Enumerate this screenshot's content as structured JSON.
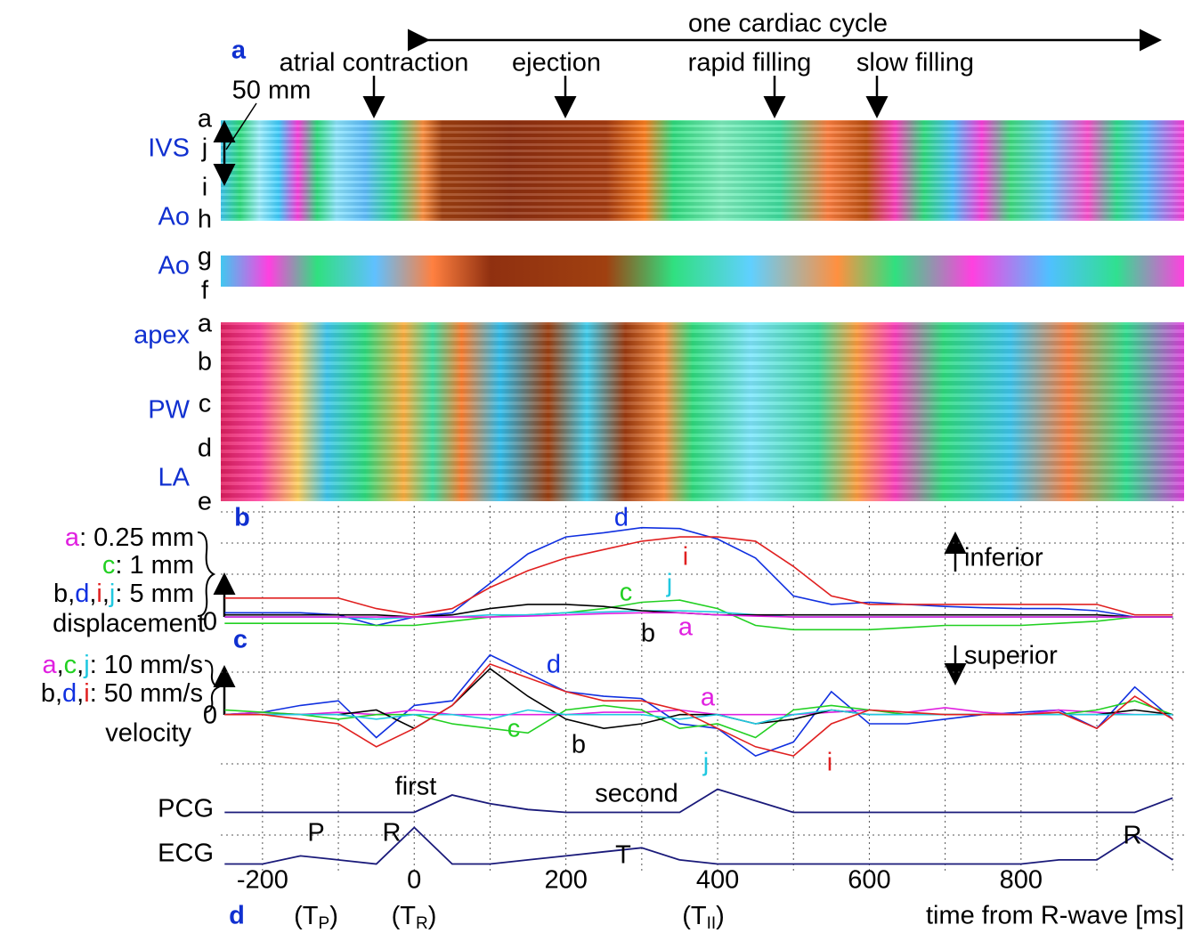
{
  "chart_data": {
    "type": "line",
    "title": "one cardiac cycle",
    "panel_letters": [
      "a",
      "b",
      "c",
      "d"
    ],
    "phases": [
      "atrial contraction",
      "ejection",
      "rapid filling",
      "slow filling"
    ],
    "scale_label": "50 mm",
    "region_labels": [
      "IVS",
      "Ao",
      "Ao",
      "apex",
      "PW",
      "LA"
    ],
    "position_labels": [
      "a",
      "j",
      "i",
      "h",
      "g",
      "f",
      "a",
      "b",
      "c",
      "d",
      "e"
    ],
    "x_label": "time from R-wave [ms]",
    "xlim": [
      -255,
      1015
    ],
    "xticks": [
      -200,
      0,
      200,
      400,
      600,
      800
    ],
    "xgrid": [
      -200,
      -100,
      0,
      100,
      200,
      300,
      400,
      500,
      600,
      700,
      800,
      900,
      1000
    ],
    "event_labels": [
      [
        "(T",
        "P",
        ")"
      ],
      [
        "(T",
        "R",
        ")"
      ],
      [
        "(T",
        "II",
        ")"
      ]
    ],
    "x": [
      -250,
      -200,
      -150,
      -100,
      -50,
      0,
      50,
      100,
      150,
      200,
      250,
      300,
      350,
      400,
      450,
      500,
      550,
      600,
      650,
      700,
      750,
      800,
      850,
      900,
      950,
      1000
    ],
    "displacement": {
      "label": "displacement",
      "zero": "0",
      "direction": "inferior",
      "ylim": [
        -0.4,
        2.6
      ],
      "scale_labels": [
        [
          "a",
          ": 0.25 mm"
        ],
        [
          "c",
          ": 1 mm"
        ],
        [
          "b",
          ",",
          "d",
          ",",
          "i",
          ",",
          "j",
          ": 5 mm"
        ]
      ],
      "series": [
        {
          "name": "d",
          "color": "#1030e0",
          "values": [
            0.1,
            0.1,
            0.1,
            0.05,
            -0.2,
            0,
            0.1,
            0.8,
            1.5,
            1.9,
            2.0,
            2.12,
            2.1,
            1.85,
            1.4,
            0.5,
            0.3,
            0.35,
            0.3,
            0.25,
            0.22,
            0.2,
            0.2,
            0.15,
            0,
            0
          ]
        },
        {
          "name": "i",
          "color": "#e02020",
          "values": [
            0.45,
            0.45,
            0.45,
            0.45,
            0.2,
            0.05,
            0.2,
            0.7,
            1.1,
            1.4,
            1.6,
            1.8,
            1.9,
            1.9,
            1.8,
            1.2,
            0.5,
            0.3,
            0.3,
            0.3,
            0.3,
            0.3,
            0.3,
            0.3,
            0.05,
            0.05
          ]
        },
        {
          "name": "c",
          "color": "#22d022",
          "values": [
            -0.15,
            -0.15,
            -0.15,
            -0.15,
            -0.2,
            -0.2,
            -0.1,
            0,
            0.05,
            0.1,
            0.2,
            0.35,
            0.4,
            0.2,
            -0.2,
            -0.3,
            -0.3,
            -0.3,
            -0.25,
            -0.2,
            -0.2,
            -0.2,
            -0.15,
            -0.1,
            0,
            0
          ]
        },
        {
          "name": "j",
          "color": "#20c8e0",
          "values": [
            0,
            0,
            0,
            0,
            -0.05,
            0,
            0,
            0.05,
            0.05,
            0.1,
            0.12,
            0.15,
            0.15,
            0.12,
            0.05,
            0,
            0,
            0,
            0,
            0,
            0,
            0,
            0,
            0,
            0,
            0
          ]
        },
        {
          "name": "b",
          "color": "#000000",
          "values": [
            0.05,
            0.05,
            0.05,
            0.05,
            0.05,
            0,
            0.05,
            0.2,
            0.3,
            0.3,
            0.25,
            0.15,
            0.1,
            0.05,
            0.05,
            0.05,
            0.05,
            0.05,
            0.05,
            0.05,
            0.05,
            0.05,
            0.05,
            0.05,
            0,
            0
          ]
        },
        {
          "name": "a",
          "color": "#e020e0",
          "values": [
            0,
            0,
            0,
            0,
            0,
            0,
            0,
            0,
            0.02,
            0.05,
            0.08,
            0.1,
            0.1,
            0.05,
            0.02,
            0,
            0,
            0,
            0,
            0,
            0,
            0,
            0,
            0,
            0,
            0
          ]
        }
      ]
    },
    "velocity": {
      "label": "velocity",
      "zero": "0",
      "direction": "superior",
      "ylim": [
        -1.15,
        1.7
      ],
      "scale_labels": [
        [
          "a",
          ",",
          "c",
          ",",
          "j",
          ": 10 mm/s"
        ],
        [
          "b",
          ",",
          "d",
          ",",
          "i",
          ": 50 mm/s"
        ]
      ],
      "series": [
        {
          "name": "d",
          "color": "#1030e0",
          "values": [
            0,
            0.05,
            0.2,
            0.3,
            -0.5,
            0.2,
            0.3,
            1.3,
            0.9,
            0.5,
            0.4,
            0.35,
            -0.2,
            -0.3,
            -0.9,
            -0.6,
            0.5,
            -0.2,
            -0.2,
            -0.1,
            0,
            0.05,
            0.1,
            -0.3,
            0.6,
            -0.1
          ]
        },
        {
          "name": "a",
          "color": "#e020e0",
          "values": [
            0,
            0.05,
            0,
            0.05,
            0,
            0.1,
            0,
            0,
            0,
            0,
            0.05,
            0.05,
            0.1,
            0,
            0,
            0,
            0.05,
            0.1,
            0.05,
            0.15,
            0.05,
            0,
            0.1,
            0.05,
            0,
            0
          ]
        },
        {
          "name": "c",
          "color": "#22d022",
          "values": [
            0.1,
            0.05,
            0,
            -0.1,
            0,
            0,
            -0.2,
            -0.3,
            -0.4,
            0.1,
            0.2,
            0.1,
            -0.3,
            -0.2,
            -0.5,
            0.1,
            0.2,
            0.1,
            0,
            0,
            0,
            0,
            0,
            0.1,
            0.3,
            0
          ]
        },
        {
          "name": "b",
          "color": "#000000",
          "values": [
            0,
            0,
            0,
            0,
            0.1,
            -0.3,
            0.2,
            1.0,
            0.4,
            -0.1,
            -0.3,
            -0.2,
            0,
            0,
            -0.2,
            -0.1,
            0.1,
            0,
            0,
            0,
            0,
            0,
            0,
            0,
            0.1,
            0
          ]
        },
        {
          "name": "j",
          "color": "#20c8e0",
          "values": [
            0,
            0,
            0,
            0,
            -0.1,
            0,
            0,
            -0.1,
            0.1,
            0,
            0,
            0,
            -0.1,
            0,
            -0.2,
            0,
            0.1,
            0,
            0,
            0,
            0,
            0,
            0,
            0,
            0,
            0
          ]
        },
        {
          "name": "i",
          "color": "#e02020",
          "values": [
            0,
            0,
            -0.1,
            -0.2,
            -0.7,
            -0.3,
            0.2,
            1.1,
            0.8,
            0.5,
            0.3,
            0.3,
            0.1,
            -0.3,
            -0.7,
            -0.9,
            -0.2,
            0.1,
            0.05,
            0,
            0,
            0,
            0.05,
            -0.3,
            0.4,
            -0.1
          ]
        }
      ]
    },
    "signals": {
      "annotations": [
        "first",
        "second",
        "P",
        "R",
        "T",
        "R"
      ],
      "series": [
        {
          "name": "PCG",
          "color": "#1a1a7a",
          "ylim": [
            -1,
            1
          ],
          "values": [
            0,
            0,
            0,
            0,
            0,
            0,
            0.6,
            0.3,
            0.1,
            0,
            0,
            0,
            0,
            0.8,
            0.4,
            0,
            0,
            0,
            0,
            0,
            0,
            0,
            0,
            0,
            0,
            0.5
          ]
        },
        {
          "name": "ECG",
          "color": "#1a1a7a",
          "ylim": [
            -0.1,
            1
          ],
          "values": [
            0,
            0,
            0.2,
            0.1,
            0,
            0.9,
            0,
            0,
            0.1,
            0.2,
            0.3,
            0.4,
            0.1,
            0,
            0,
            0,
            0,
            0,
            0,
            0,
            0,
            0,
            0.1,
            0.1,
            0.7,
            0.1
          ]
        }
      ]
    }
  }
}
